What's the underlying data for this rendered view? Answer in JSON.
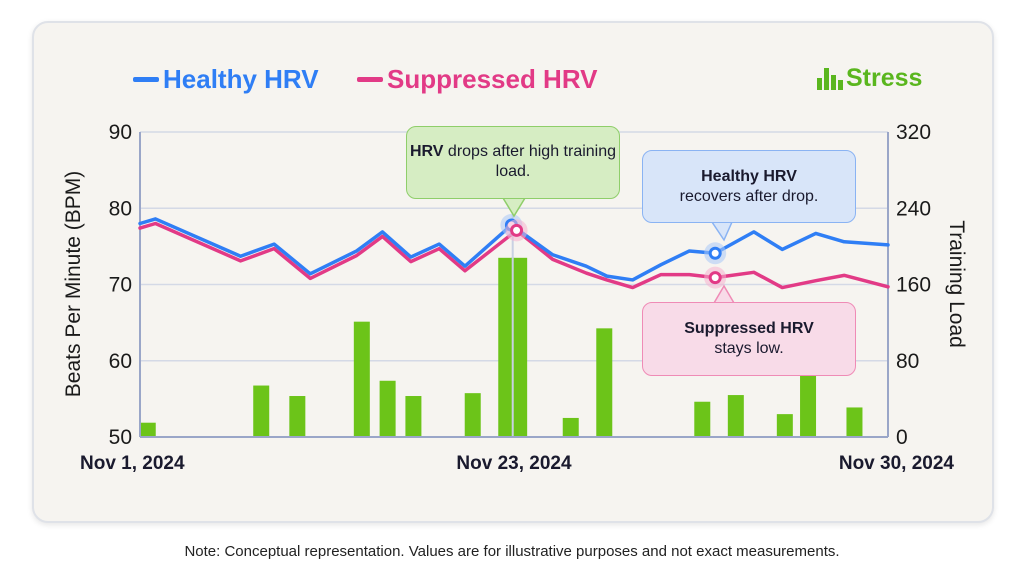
{
  "chart_data": {
    "type": "line+bar",
    "title": "",
    "legend": [
      {
        "name": "Healthy HRV",
        "color": "#2f7ef5",
        "type": "line"
      },
      {
        "name": "Suppressed HRV",
        "color": "#e23a86",
        "type": "line"
      },
      {
        "name": "Stress",
        "color": "#5ab61e",
        "type": "bar",
        "icon": "bar-chart-icon"
      }
    ],
    "legend_position": "top",
    "ylabel": "Beats Per Minute (BPM)",
    "ylim": [
      50,
      90
    ],
    "yticks": [
      "50",
      "60",
      "70",
      "80",
      "90"
    ],
    "y2label": "Training Load",
    "y2lim": [
      0,
      320
    ],
    "y2ticks": [
      "0",
      "80",
      "160",
      "240",
      "320"
    ],
    "xlim": [
      0,
      29
    ],
    "xticks": [
      {
        "label": "Nov 1, 2024",
        "x": 0
      },
      {
        "label": "Nov 23, 2024",
        "x": 14.5
      },
      {
        "label": "Nov 30, 2024",
        "x": 29
      }
    ],
    "grid": true,
    "series": [
      {
        "name": "Healthy HRV",
        "axis": "left",
        "x": [
          0,
          0.6,
          3.9,
          5.2,
          6.6,
          8.4,
          9.4,
          10.5,
          11.6,
          12.6,
          14.4,
          16,
          17.3,
          18.1,
          19.1,
          20.2,
          21.3,
          22.3,
          23.8,
          24.9,
          26.2,
          27.3,
          29
        ],
        "values": [
          78,
          78.6,
          73.7,
          75.3,
          71.4,
          74.4,
          76.9,
          73.6,
          75.3,
          72.4,
          77.8,
          73.9,
          72.4,
          71.1,
          70.6,
          72.6,
          74.4,
          74.1,
          76.9,
          74.6,
          76.7,
          75.6,
          75.2
        ]
      },
      {
        "name": "Suppressed HRV",
        "axis": "left",
        "x": [
          0,
          0.6,
          3.9,
          5.2,
          6.6,
          8.4,
          9.4,
          10.5,
          11.6,
          12.6,
          14.6,
          16,
          17.3,
          18.1,
          19.1,
          20.2,
          21.3,
          22.3,
          23.8,
          24.9,
          26.2,
          27.3,
          29
        ],
        "values": [
          77.4,
          78,
          73.1,
          74.7,
          70.8,
          73.8,
          76.3,
          73,
          74.7,
          71.8,
          77.1,
          73.3,
          71.5,
          70.6,
          69.6,
          71.3,
          71.3,
          70.9,
          71.6,
          69.6,
          70.5,
          71.2,
          69.7
        ]
      },
      {
        "name": "Stress",
        "axis": "right",
        "type": "bar",
        "x": [
          0.3,
          4.7,
          6.1,
          8.6,
          9.6,
          10.6,
          12.9,
          14.2,
          14.7,
          16.7,
          18,
          21.8,
          23.1,
          25,
          25.9,
          27.7
        ],
        "values": [
          15,
          54,
          43,
          121,
          59,
          43,
          46,
          188,
          188,
          20,
          114,
          37,
          44,
          24,
          96,
          31
        ]
      }
    ],
    "annotations": [
      {
        "bold": "HRV",
        "text": " drops after high training load.",
        "target": "Nov 23 peak",
        "color": "green"
      },
      {
        "bold": "Healthy HRV",
        "text": "recovers after drop.",
        "target": "Healthy HRV",
        "color": "blue"
      },
      {
        "bold": "Suppressed HRV",
        "text": "stays low.",
        "target": "Suppressed HRV",
        "color": "pink"
      }
    ]
  },
  "legend": {
    "healthy": "Healthy HRV",
    "suppressed": "Suppressed HRV",
    "stress": "Stress"
  },
  "annotations": {
    "a1_bold": "HRV",
    "a1_text": " drops after high training load.",
    "a2_bold": "Healthy HRV",
    "a2_text": "recovers after drop.",
    "a3_bold": "Suppressed HRV",
    "a3_text": "stays low."
  },
  "note": "Note: Conceptual representation. Values are for illustrative purposes and not exact measurements."
}
